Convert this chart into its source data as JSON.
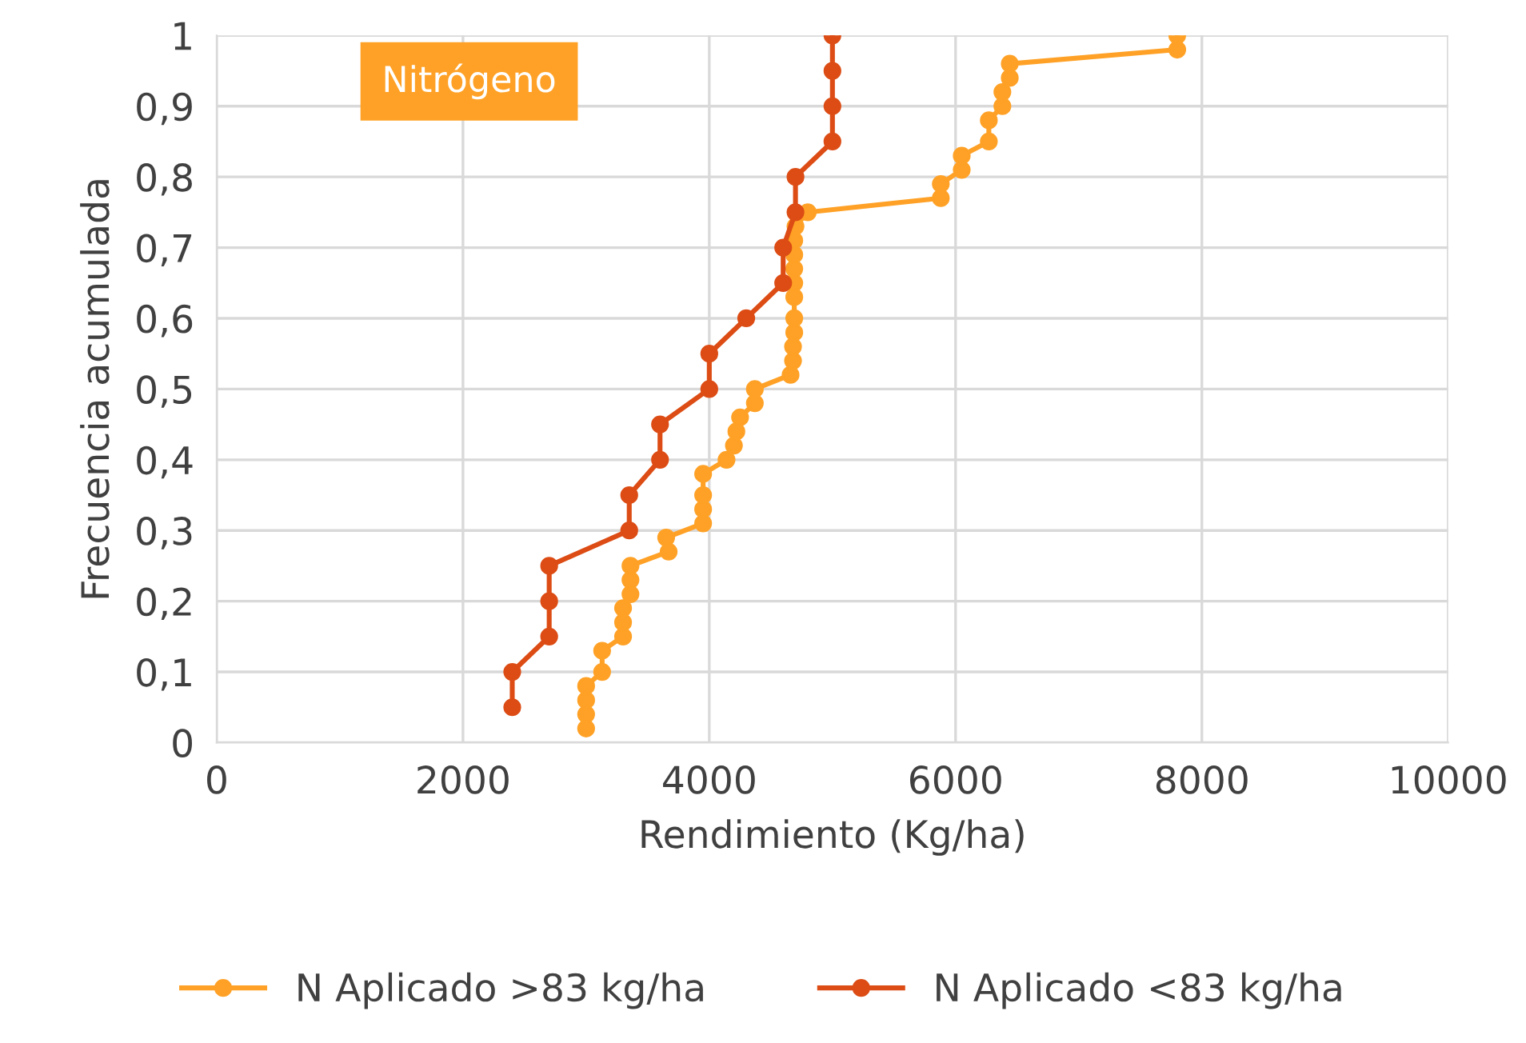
{
  "chart_data": {
    "type": "line",
    "xlabel": "Rendimiento (Kg/ha)",
    "ylabel": "Frecuencia acumulada",
    "annotations": [
      "Nitrógeno"
    ],
    "xlim": [
      0,
      10000
    ],
    "xticks": [
      0,
      2000,
      4000,
      6000,
      8000,
      10000
    ],
    "ylim": [
      0,
      1
    ],
    "yticks": [
      {
        "value": 0,
        "label": "0"
      },
      {
        "value": 0.1,
        "label": "0,1"
      },
      {
        "value": 0.2,
        "label": "0,2"
      },
      {
        "value": 0.3,
        "label": "0,3"
      },
      {
        "value": 0.4,
        "label": "0,4"
      },
      {
        "value": 0.5,
        "label": "0,5"
      },
      {
        "value": 0.6,
        "label": "0,6"
      },
      {
        "value": 0.7,
        "label": "0,7"
      },
      {
        "value": 0.8,
        "label": "0,8"
      },
      {
        "value": 0.9,
        "label": "0,9"
      },
      {
        "value": 1,
        "label": "1"
      }
    ],
    "grid": true,
    "legend": "bottom",
    "marker": "circle",
    "line_style": "solid",
    "series": [
      {
        "name": "N Aplicado >83 kg/ha",
        "color": "#ffa126",
        "x": [
          3000,
          3000,
          3000,
          3000,
          3130,
          3130,
          3300,
          3300,
          3300,
          3360,
          3360,
          3360,
          3670,
          3650,
          3950,
          3950,
          3950,
          3950,
          4140,
          4200,
          4220,
          4250,
          4370,
          4370,
          4660,
          4680,
          4680,
          4690,
          4690,
          4690,
          4690,
          4690,
          4690,
          4690,
          4700,
          4800,
          5880,
          5880,
          6050,
          6050,
          6270,
          6270,
          6380,
          6380,
          6440,
          6440,
          7800,
          7800
        ],
        "values": [
          0.02,
          0.04,
          0.06,
          0.08,
          0.1,
          0.13,
          0.15,
          0.17,
          0.19,
          0.21,
          0.23,
          0.25,
          0.27,
          0.29,
          0.31,
          0.33,
          0.35,
          0.38,
          0.4,
          0.42,
          0.44,
          0.46,
          0.48,
          0.5,
          0.52,
          0.54,
          0.56,
          0.58,
          0.6,
          0.63,
          0.65,
          0.67,
          0.69,
          0.71,
          0.73,
          0.75,
          0.77,
          0.79,
          0.81,
          0.83,
          0.85,
          0.88,
          0.9,
          0.92,
          0.94,
          0.96,
          0.98,
          1.0
        ]
      },
      {
        "name": "N Aplicado <83 kg/ha",
        "color": "#dc4c14",
        "x": [
          2400,
          2400,
          2700,
          2700,
          2700,
          3350,
          3350,
          3600,
          3600,
          4000,
          4000,
          4300,
          4600,
          4600,
          4700,
          4700,
          5000,
          5000,
          5000,
          5000
        ],
        "values": [
          0.05,
          0.1,
          0.15,
          0.2,
          0.25,
          0.3,
          0.35,
          0.4,
          0.45,
          0.5,
          0.55,
          0.6,
          0.65,
          0.7,
          0.75,
          0.8,
          0.85,
          0.9,
          0.95,
          1.0
        ]
      }
    ]
  }
}
